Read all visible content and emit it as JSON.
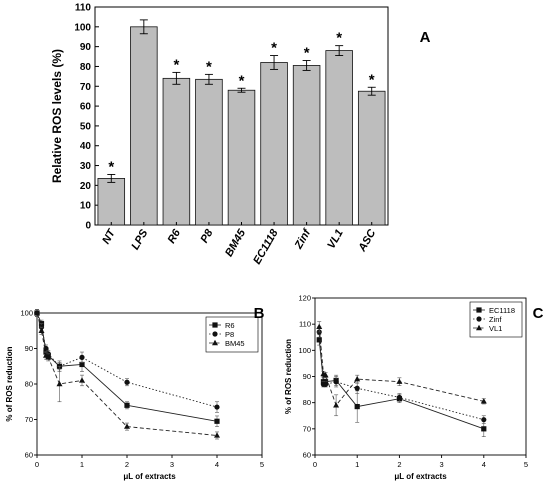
{
  "chart_data": [
    {
      "panel": "A",
      "type": "bar",
      "ylabel": "Relative ROS levels (%)",
      "xlabel": "",
      "ylim": [
        0,
        110
      ],
      "yticks": [
        0,
        10,
        20,
        30,
        40,
        50,
        60,
        70,
        80,
        90,
        100,
        110
      ],
      "categories": [
        "NT",
        "LPS",
        "R6",
        "P8",
        "BM45",
        "EC1118",
        "Zinf",
        "VL1",
        "ASC"
      ],
      "values": [
        23.5,
        100,
        74,
        73.5,
        68,
        82,
        80.5,
        88,
        67.5
      ],
      "errors": [
        2,
        3.5,
        3,
        2.5,
        1,
        3.5,
        2.5,
        2.5,
        2
      ],
      "significance": [
        "*",
        "",
        "*",
        "*",
        "*",
        "*",
        "*",
        "*",
        "*"
      ],
      "bar_color": "#bdbdbd",
      "grid": false
    },
    {
      "panel": "B",
      "type": "line",
      "xlabel": "μL of extracts",
      "ylabel": "% of ROS reduction",
      "xlim": [
        0,
        5
      ],
      "ylim": [
        60,
        100
      ],
      "xticks": [
        0,
        1,
        2,
        3,
        4,
        5
      ],
      "yticks": [
        60,
        70,
        80,
        90,
        100
      ],
      "x": [
        0,
        0.1,
        0.2,
        0.25,
        0.5,
        1,
        2,
        4
      ],
      "series": [
        {
          "name": "R6",
          "marker": "square",
          "dash": "solid",
          "values": [
            100,
            97,
            89,
            88,
            85,
            85.5,
            74,
            69.5
          ],
          "errors": [
            1,
            1,
            1,
            1,
            1,
            2,
            1,
            1.5
          ]
        },
        {
          "name": "P8",
          "marker": "circle",
          "dash": "dotted",
          "values": [
            100,
            96,
            90,
            88.5,
            85,
            87.5,
            80.5,
            73.5
          ],
          "errors": [
            1,
            1,
            1,
            1,
            1.5,
            1.5,
            1,
            1.5
          ]
        },
        {
          "name": "BM45",
          "marker": "triangle",
          "dash": "dashed",
          "values": [
            100,
            95,
            88,
            87.5,
            80,
            81,
            68,
            65.5
          ],
          "errors": [
            1,
            1,
            1,
            1,
            5,
            1.5,
            1,
            1
          ]
        }
      ],
      "legend": "top-right",
      "grid": false
    },
    {
      "panel": "C",
      "type": "line",
      "xlabel": "μL of extracts",
      "ylabel": "% of ROS reduction",
      "xlim": [
        0,
        5
      ],
      "ylim": [
        60,
        120
      ],
      "xticks": [
        0,
        1,
        2,
        3,
        4,
        5
      ],
      "yticks": [
        60,
        70,
        80,
        90,
        100,
        110,
        120
      ],
      "x": [
        0.1,
        0.2,
        0.25,
        0.5,
        1,
        2,
        4
      ],
      "series": [
        {
          "name": "EC1118",
          "marker": "square",
          "dash": "solid",
          "values": [
            104,
            88,
            88,
            88.5,
            78.5,
            81.5,
            70
          ],
          "errors": [
            2,
            1.5,
            1,
            2,
            6,
            1.5,
            3
          ]
        },
        {
          "name": "Zinf",
          "marker": "circle",
          "dash": "dotted",
          "values": [
            107,
            87,
            87,
            88,
            85.5,
            82,
            73.5
          ],
          "errors": [
            2,
            1,
            1,
            2,
            2,
            1.5,
            1.5
          ]
        },
        {
          "name": "VL1",
          "marker": "triangle",
          "dash": "dashed",
          "values": [
            109,
            91,
            90.5,
            79,
            89,
            88,
            80.5
          ],
          "errors": [
            2,
            1,
            1,
            4,
            1.5,
            1.5,
            1
          ]
        }
      ],
      "legend": "top-right",
      "grid": false
    }
  ]
}
